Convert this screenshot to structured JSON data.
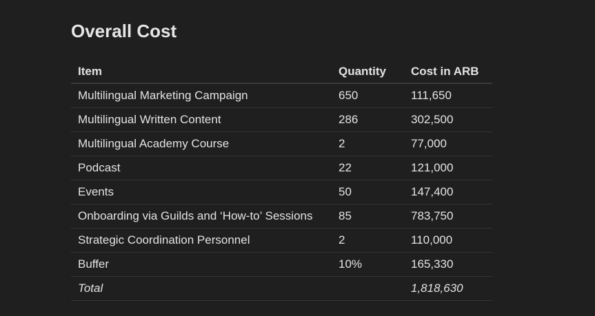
{
  "title": "Overall Cost",
  "table": {
    "headers": [
      "Item",
      "Quantity",
      "Cost in ARB"
    ],
    "rows": [
      [
        "Multilingual Marketing Campaign",
        "650",
        "111,650"
      ],
      [
        "Multilingual Written Content",
        "286",
        "302,500"
      ],
      [
        "Multilingual Academy Course",
        "2",
        "77,000"
      ],
      [
        "Podcast",
        "22",
        "121,000"
      ],
      [
        "Events",
        "50",
        "147,400"
      ],
      [
        "Onboarding via Guilds and ‘How-to’ Sessions",
        "85",
        "783,750"
      ],
      [
        "Strategic Coordination Personnel",
        "2",
        "110,000"
      ],
      [
        "Buffer",
        "10%",
        "165,330"
      ]
    ],
    "total": {
      "label": "Total",
      "cost": "1,818,630"
    }
  }
}
